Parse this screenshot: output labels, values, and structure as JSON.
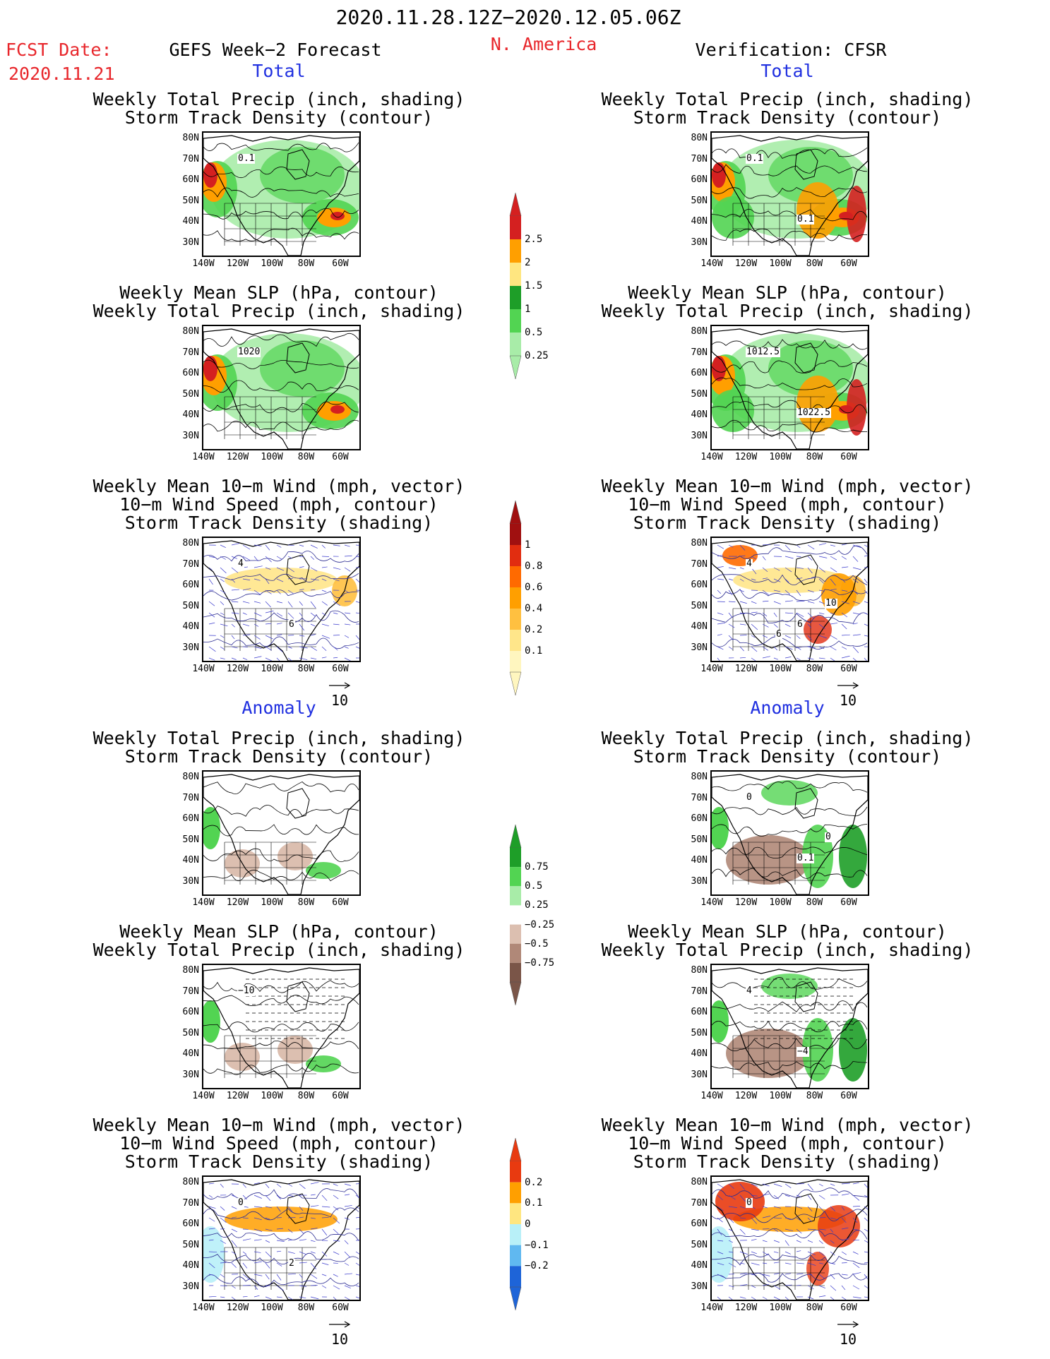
{
  "header": {
    "period": "2020.11.28.12Z−2020.12.05.06Z",
    "fcst_label": "FCST Date:",
    "fcst_date": "2020.11.21",
    "model": "GEFS Week−2 Forecast",
    "region": "N. America",
    "verification": "Verification: CFSR"
  },
  "sections": [
    {
      "label": "Total"
    },
    {
      "label": "Anomaly"
    }
  ],
  "titles": {
    "precip_storm": [
      "Weekly Total Precip (inch, shading)",
      "Storm Track Density (contour)"
    ],
    "slp_precip": [
      "Weekly Mean SLP (hPa, contour)",
      "Weekly Total Precip (inch, shading)"
    ],
    "wind_storm": [
      "Weekly Mean 10−m Wind (mph, vector)",
      "10−m Wind Speed (mph, contour)",
      "Storm Track Density (shading)"
    ]
  },
  "axes": {
    "lat": [
      "80N",
      "70N",
      "60N",
      "50N",
      "40N",
      "30N"
    ],
    "lon": [
      "140W",
      "120W",
      "100W",
      "80W",
      "60W"
    ]
  },
  "vector_ref": "10",
  "contour_labels": {
    "fc_total_precip": [
      "0.1"
    ],
    "vf_total_precip": [
      "0.1",
      "0.1"
    ],
    "fc_total_slp": [
      "1020"
    ],
    "vf_total_slp": [
      "1012.5",
      "1022.5"
    ],
    "fc_total_wind": [
      "4",
      "6"
    ],
    "vf_total_wind": [
      "4",
      "6",
      "10",
      "6"
    ],
    "vf_anom_precip": [
      "0",
      "0.1",
      "0"
    ],
    "fc_anom_slp": [
      "−10"
    ],
    "vf_anom_slp": [
      "4",
      "−4"
    ],
    "fc_anom_wind": [
      "0",
      "2"
    ],
    "vf_anom_wind": [
      "0"
    ]
  },
  "colorbars": {
    "precip_total": {
      "labels": [
        "2.5",
        "2",
        "1.5",
        "1",
        "0.5",
        "0.25"
      ],
      "colors": [
        "#d42020",
        "#ff9f00",
        "#ffe680",
        "#1e9e28",
        "#52d452",
        "#a8eca8"
      ]
    },
    "storm_density_total": {
      "labels": [
        "1",
        "0.8",
        "0.6",
        "0.4",
        "0.2",
        "0.1"
      ],
      "colors": [
        "#a01010",
        "#e12d10",
        "#ff6a00",
        "#ff9f00",
        "#ffc040",
        "#ffe68a",
        "#fff6bf"
      ]
    },
    "precip_anomaly": {
      "labels": [
        "0.75",
        "0.5",
        "0.25",
        "−0.25",
        "−0.5",
        "−0.75"
      ],
      "colors": [
        "#1e9e28",
        "#52d452",
        "#a8eca8",
        "#ffffff",
        "#dcbfb0",
        "#b08878",
        "#7a5548"
      ]
    },
    "storm_density_anomaly": {
      "labels": [
        "0.2",
        "0.1",
        "0",
        "−0.1",
        "−0.2"
      ],
      "colors": [
        "#e83a10",
        "#ff9f00",
        "#ffe680",
        "#b8f0f8",
        "#60b8f0",
        "#1e64d8"
      ]
    }
  },
  "colors": {
    "header_red": "#e8262b",
    "section_blue": "#2030e0",
    "vector_blue": "#3a3acc"
  }
}
